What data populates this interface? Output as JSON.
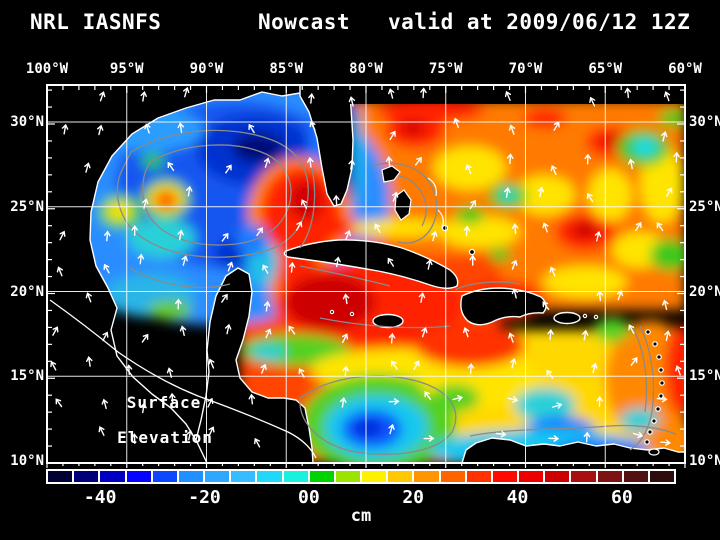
{
  "title": {
    "model": "NRL IASNFS",
    "mode": "Nowcast",
    "valid": "valid at 2009/06/12 12Z"
  },
  "axes": {
    "lon_labels": [
      "100°W",
      "95°W",
      "90°W",
      "85°W",
      "80°W",
      "75°W",
      "70°W",
      "65°W",
      "60°W"
    ],
    "lat_labels": [
      "30°N",
      "25°N",
      "20°N",
      "15°N",
      "10°N"
    ]
  },
  "map_annotation": {
    "line1": "Surface",
    "line2": "Elevation"
  },
  "colorbar": {
    "unit": "cm",
    "min": -50,
    "max": 70,
    "tick_labels": [
      "-40",
      "-20",
      "00",
      "20",
      "40",
      "60"
    ],
    "tick_values": [
      -40,
      -20,
      0,
      20,
      40,
      60
    ],
    "colors": [
      "#010134",
      "#000079",
      "#0000c3",
      "#0404ff",
      "#0d47ff",
      "#1e90ff",
      "#2ea8ff",
      "#35bdff",
      "#20d8f8",
      "#19f0e0",
      "#00d400",
      "#9be400",
      "#fff000",
      "#ffc800",
      "#ff9600",
      "#ff6400",
      "#ff3200",
      "#ff0a00",
      "#ed0000",
      "#cd0000",
      "#a80f0f",
      "#7c1212",
      "#521010",
      "#2f0c0c"
    ]
  },
  "field": {
    "quantity": "Sea Surface Elevation",
    "units": "cm"
  }
}
